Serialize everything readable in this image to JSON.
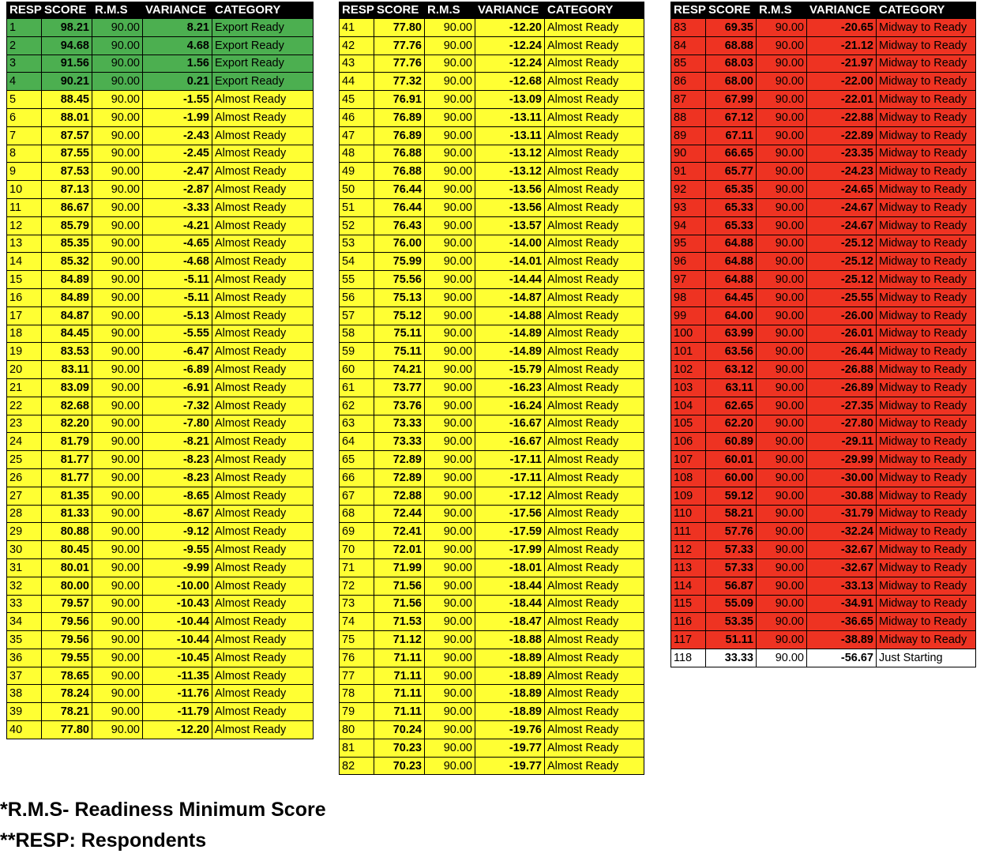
{
  "headers": [
    "RESP",
    "SCORE",
    "R.M.S",
    "VARIANCE",
    "CATEGORY"
  ],
  "colors": {
    "Export Ready": "#4caf50",
    "Almost Ready": "#ffff33",
    "Midway to Ready": "#ee3322",
    "Just Starting": "#ffffff"
  },
  "tables": [
    {
      "rows": [
        [
          "1",
          "98.21",
          "90.00",
          "8.21",
          "Export Ready"
        ],
        [
          "2",
          "94.68",
          "90.00",
          "4.68",
          "Export Ready"
        ],
        [
          "3",
          "91.56",
          "90.00",
          "1.56",
          "Export Ready"
        ],
        [
          "4",
          "90.21",
          "90.00",
          "0.21",
          "Export Ready"
        ],
        [
          "5",
          "88.45",
          "90.00",
          "-1.55",
          "Almost Ready"
        ],
        [
          "6",
          "88.01",
          "90.00",
          "-1.99",
          "Almost Ready"
        ],
        [
          "7",
          "87.57",
          "90.00",
          "-2.43",
          "Almost Ready"
        ],
        [
          "8",
          "87.55",
          "90.00",
          "-2.45",
          "Almost Ready"
        ],
        [
          "9",
          "87.53",
          "90.00",
          "-2.47",
          "Almost Ready"
        ],
        [
          "10",
          "87.13",
          "90.00",
          "-2.87",
          "Almost Ready"
        ],
        [
          "11",
          "86.67",
          "90.00",
          "-3.33",
          "Almost Ready"
        ],
        [
          "12",
          "85.79",
          "90.00",
          "-4.21",
          "Almost Ready"
        ],
        [
          "13",
          "85.35",
          "90.00",
          "-4.65",
          "Almost Ready"
        ],
        [
          "14",
          "85.32",
          "90.00",
          "-4.68",
          "Almost Ready"
        ],
        [
          "15",
          "84.89",
          "90.00",
          "-5.11",
          "Almost Ready"
        ],
        [
          "16",
          "84.89",
          "90.00",
          "-5.11",
          "Almost Ready"
        ],
        [
          "17",
          "84.87",
          "90.00",
          "-5.13",
          "Almost Ready"
        ],
        [
          "18",
          "84.45",
          "90.00",
          "-5.55",
          "Almost Ready"
        ],
        [
          "19",
          "83.53",
          "90.00",
          "-6.47",
          "Almost Ready"
        ],
        [
          "20",
          "83.11",
          "90.00",
          "-6.89",
          "Almost Ready"
        ],
        [
          "21",
          "83.09",
          "90.00",
          "-6.91",
          "Almost Ready"
        ],
        [
          "22",
          "82.68",
          "90.00",
          "-7.32",
          "Almost Ready"
        ],
        [
          "23",
          "82.20",
          "90.00",
          "-7.80",
          "Almost Ready"
        ],
        [
          "24",
          "81.79",
          "90.00",
          "-8.21",
          "Almost Ready"
        ],
        [
          "25",
          "81.77",
          "90.00",
          "-8.23",
          "Almost Ready"
        ],
        [
          "26",
          "81.77",
          "90.00",
          "-8.23",
          "Almost Ready"
        ],
        [
          "27",
          "81.35",
          "90.00",
          "-8.65",
          "Almost Ready"
        ],
        [
          "28",
          "81.33",
          "90.00",
          "-8.67",
          "Almost Ready"
        ],
        [
          "29",
          "80.88",
          "90.00",
          "-9.12",
          "Almost Ready"
        ],
        [
          "30",
          "80.45",
          "90.00",
          "-9.55",
          "Almost Ready"
        ],
        [
          "31",
          "80.01",
          "90.00",
          "-9.99",
          "Almost Ready"
        ],
        [
          "32",
          "80.00",
          "90.00",
          "-10.00",
          "Almost Ready"
        ],
        [
          "33",
          "79.57",
          "90.00",
          "-10.43",
          "Almost Ready"
        ],
        [
          "34",
          "79.56",
          "90.00",
          "-10.44",
          "Almost Ready"
        ],
        [
          "35",
          "79.56",
          "90.00",
          "-10.44",
          "Almost Ready"
        ],
        [
          "36",
          "79.55",
          "90.00",
          "-10.45",
          "Almost Ready"
        ],
        [
          "37",
          "78.65",
          "90.00",
          "-11.35",
          "Almost Ready"
        ],
        [
          "38",
          "78.24",
          "90.00",
          "-11.76",
          "Almost Ready"
        ],
        [
          "39",
          "78.21",
          "90.00",
          "-11.79",
          "Almost Ready"
        ],
        [
          "40",
          "77.80",
          "90.00",
          "-12.20",
          "Almost Ready"
        ]
      ]
    },
    {
      "rows": [
        [
          "41",
          "77.80",
          "90.00",
          "-12.20",
          "Almost Ready"
        ],
        [
          "42",
          "77.76",
          "90.00",
          "-12.24",
          "Almost Ready"
        ],
        [
          "43",
          "77.76",
          "90.00",
          "-12.24",
          "Almost Ready"
        ],
        [
          "44",
          "77.32",
          "90.00",
          "-12.68",
          "Almost Ready"
        ],
        [
          "45",
          "76.91",
          "90.00",
          "-13.09",
          "Almost Ready"
        ],
        [
          "46",
          "76.89",
          "90.00",
          "-13.11",
          "Almost Ready"
        ],
        [
          "47",
          "76.89",
          "90.00",
          "-13.11",
          "Almost Ready"
        ],
        [
          "48",
          "76.88",
          "90.00",
          "-13.12",
          "Almost Ready"
        ],
        [
          "49",
          "76.88",
          "90.00",
          "-13.12",
          "Almost Ready"
        ],
        [
          "50",
          "76.44",
          "90.00",
          "-13.56",
          "Almost Ready"
        ],
        [
          "51",
          "76.44",
          "90.00",
          "-13.56",
          "Almost Ready"
        ],
        [
          "52",
          "76.43",
          "90.00",
          "-13.57",
          "Almost Ready"
        ],
        [
          "53",
          "76.00",
          "90.00",
          "-14.00",
          "Almost Ready"
        ],
        [
          "54",
          "75.99",
          "90.00",
          "-14.01",
          "Almost Ready"
        ],
        [
          "55",
          "75.56",
          "90.00",
          "-14.44",
          "Almost Ready"
        ],
        [
          "56",
          "75.13",
          "90.00",
          "-14.87",
          "Almost Ready"
        ],
        [
          "57",
          "75.12",
          "90.00",
          "-14.88",
          "Almost Ready"
        ],
        [
          "58",
          "75.11",
          "90.00",
          "-14.89",
          "Almost Ready"
        ],
        [
          "59",
          "75.11",
          "90.00",
          "-14.89",
          "Almost Ready"
        ],
        [
          "60",
          "74.21",
          "90.00",
          "-15.79",
          "Almost Ready"
        ],
        [
          "61",
          "73.77",
          "90.00",
          "-16.23",
          "Almost Ready"
        ],
        [
          "62",
          "73.76",
          "90.00",
          "-16.24",
          "Almost Ready"
        ],
        [
          "63",
          "73.33",
          "90.00",
          "-16.67",
          "Almost Ready"
        ],
        [
          "64",
          "73.33",
          "90.00",
          "-16.67",
          "Almost Ready"
        ],
        [
          "65",
          "72.89",
          "90.00",
          "-17.11",
          "Almost Ready"
        ],
        [
          "66",
          "72.89",
          "90.00",
          "-17.11",
          "Almost Ready"
        ],
        [
          "67",
          "72.88",
          "90.00",
          "-17.12",
          "Almost Ready"
        ],
        [
          "68",
          "72.44",
          "90.00",
          "-17.56",
          "Almost Ready"
        ],
        [
          "69",
          "72.41",
          "90.00",
          "-17.59",
          "Almost Ready"
        ],
        [
          "70",
          "72.01",
          "90.00",
          "-17.99",
          "Almost Ready"
        ],
        [
          "71",
          "71.99",
          "90.00",
          "-18.01",
          "Almost Ready"
        ],
        [
          "72",
          "71.56",
          "90.00",
          "-18.44",
          "Almost Ready"
        ],
        [
          "73",
          "71.56",
          "90.00",
          "-18.44",
          "Almost Ready"
        ],
        [
          "74",
          "71.53",
          "90.00",
          "-18.47",
          "Almost Ready"
        ],
        [
          "75",
          "71.12",
          "90.00",
          "-18.88",
          "Almost Ready"
        ],
        [
          "76",
          "71.11",
          "90.00",
          "-18.89",
          "Almost Ready"
        ],
        [
          "77",
          "71.11",
          "90.00",
          "-18.89",
          "Almost Ready"
        ],
        [
          "78",
          "71.11",
          "90.00",
          "-18.89",
          "Almost Ready"
        ],
        [
          "79",
          "71.11",
          "90.00",
          "-18.89",
          "Almost Ready"
        ],
        [
          "80",
          "70.24",
          "90.00",
          "-19.76",
          "Almost Ready"
        ],
        [
          "81",
          "70.23",
          "90.00",
          "-19.77",
          "Almost Ready"
        ],
        [
          "82",
          "70.23",
          "90.00",
          "-19.77",
          "Almost Ready"
        ]
      ]
    },
    {
      "rows": [
        [
          "83",
          "69.35",
          "90.00",
          "-20.65",
          "Midway to Ready"
        ],
        [
          "84",
          "68.88",
          "90.00",
          "-21.12",
          "Midway to Ready"
        ],
        [
          "85",
          "68.03",
          "90.00",
          "-21.97",
          "Midway to Ready"
        ],
        [
          "86",
          "68.00",
          "90.00",
          "-22.00",
          "Midway to Ready"
        ],
        [
          "87",
          "67.99",
          "90.00",
          "-22.01",
          "Midway to Ready"
        ],
        [
          "88",
          "67.12",
          "90.00",
          "-22.88",
          "Midway to Ready"
        ],
        [
          "89",
          "67.11",
          "90.00",
          "-22.89",
          "Midway to Ready"
        ],
        [
          "90",
          "66.65",
          "90.00",
          "-23.35",
          "Midway to Ready"
        ],
        [
          "91",
          "65.77",
          "90.00",
          "-24.23",
          "Midway to Ready"
        ],
        [
          "92",
          "65.35",
          "90.00",
          "-24.65",
          "Midway to Ready"
        ],
        [
          "93",
          "65.33",
          "90.00",
          "-24.67",
          "Midway to Ready"
        ],
        [
          "94",
          "65.33",
          "90.00",
          "-24.67",
          "Midway to Ready"
        ],
        [
          "95",
          "64.88",
          "90.00",
          "-25.12",
          "Midway to Ready"
        ],
        [
          "96",
          "64.88",
          "90.00",
          "-25.12",
          "Midway to Ready"
        ],
        [
          "97",
          "64.88",
          "90.00",
          "-25.12",
          "Midway to Ready"
        ],
        [
          "98",
          "64.45",
          "90.00",
          "-25.55",
          "Midway to Ready"
        ],
        [
          "99",
          "64.00",
          "90.00",
          "-26.00",
          "Midway to Ready"
        ],
        [
          "100",
          "63.99",
          "90.00",
          "-26.01",
          "Midway to Ready"
        ],
        [
          "101",
          "63.56",
          "90.00",
          "-26.44",
          "Midway to Ready"
        ],
        [
          "102",
          "63.12",
          "90.00",
          "-26.88",
          "Midway to Ready"
        ],
        [
          "103",
          "63.11",
          "90.00",
          "-26.89",
          "Midway to Ready"
        ],
        [
          "104",
          "62.65",
          "90.00",
          "-27.35",
          "Midway to Ready"
        ],
        [
          "105",
          "62.20",
          "90.00",
          "-27.80",
          "Midway to Ready"
        ],
        [
          "106",
          "60.89",
          "90.00",
          "-29.11",
          "Midway to Ready"
        ],
        [
          "107",
          "60.01",
          "90.00",
          "-29.99",
          "Midway to Ready"
        ],
        [
          "108",
          "60.00",
          "90.00",
          "-30.00",
          "Midway to Ready"
        ],
        [
          "109",
          "59.12",
          "90.00",
          "-30.88",
          "Midway to Ready"
        ],
        [
          "110",
          "58.21",
          "90.00",
          "-31.79",
          "Midway to Ready"
        ],
        [
          "111",
          "57.76",
          "90.00",
          "-32.24",
          "Midway to Ready"
        ],
        [
          "112",
          "57.33",
          "90.00",
          "-32.67",
          "Midway to Ready"
        ],
        [
          "113",
          "57.33",
          "90.00",
          "-32.67",
          "Midway to Ready"
        ],
        [
          "114",
          "56.87",
          "90.00",
          "-33.13",
          "Midway to Ready"
        ],
        [
          "115",
          "55.09",
          "90.00",
          "-34.91",
          "Midway to Ready"
        ],
        [
          "116",
          "53.35",
          "90.00",
          "-36.65",
          "Midway to Ready"
        ],
        [
          "117",
          "51.11",
          "90.00",
          "-38.89",
          "Midway to Ready"
        ],
        [
          "118",
          "33.33",
          "90.00",
          "-56.67",
          "Just Starting"
        ]
      ]
    }
  ],
  "footnotes": [
    "*R.M.S- Readiness Minimum Score",
    "**RESP: Respondents"
  ]
}
